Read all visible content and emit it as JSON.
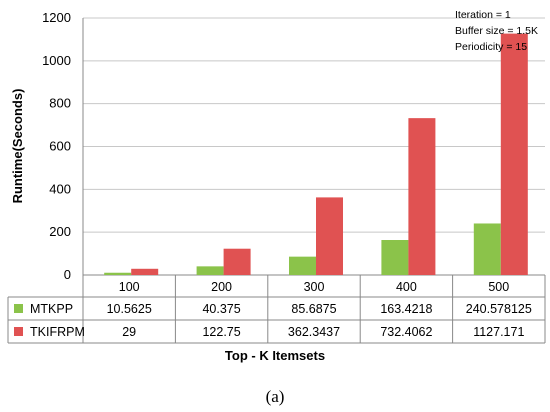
{
  "chart_data": {
    "type": "bar",
    "categories": [
      "100",
      "200",
      "300",
      "400",
      "500"
    ],
    "series": [
      {
        "name": "MTKPP",
        "values": [
          10.5625,
          40.375,
          85.6875,
          163.4218,
          240.578125
        ],
        "labels": [
          "10.5625",
          "40.375",
          "85.6875",
          "163.4218",
          "240.578125"
        ],
        "color": "#8bc34a"
      },
      {
        "name": "TKIFRPM",
        "values": [
          29,
          122.75,
          362.3437,
          732.4062,
          1127.171
        ],
        "labels": [
          "29",
          "122.75",
          "362.3437",
          "732.4062",
          "1127.171"
        ],
        "color": "#e05252"
      }
    ],
    "xlabel": "Top - K Itemsets",
    "ylabel": "Runtime(Seconds)",
    "ylim": [
      0,
      1200
    ],
    "yticks": [
      "0",
      "200",
      "400",
      "600",
      "800",
      "1000",
      "1200"
    ],
    "grid": true,
    "annotations": [
      "Iteration = 1",
      "Buffer size = 1.5K",
      "Periodicity = 15"
    ],
    "legend": "data-table"
  },
  "caption": "(a)"
}
